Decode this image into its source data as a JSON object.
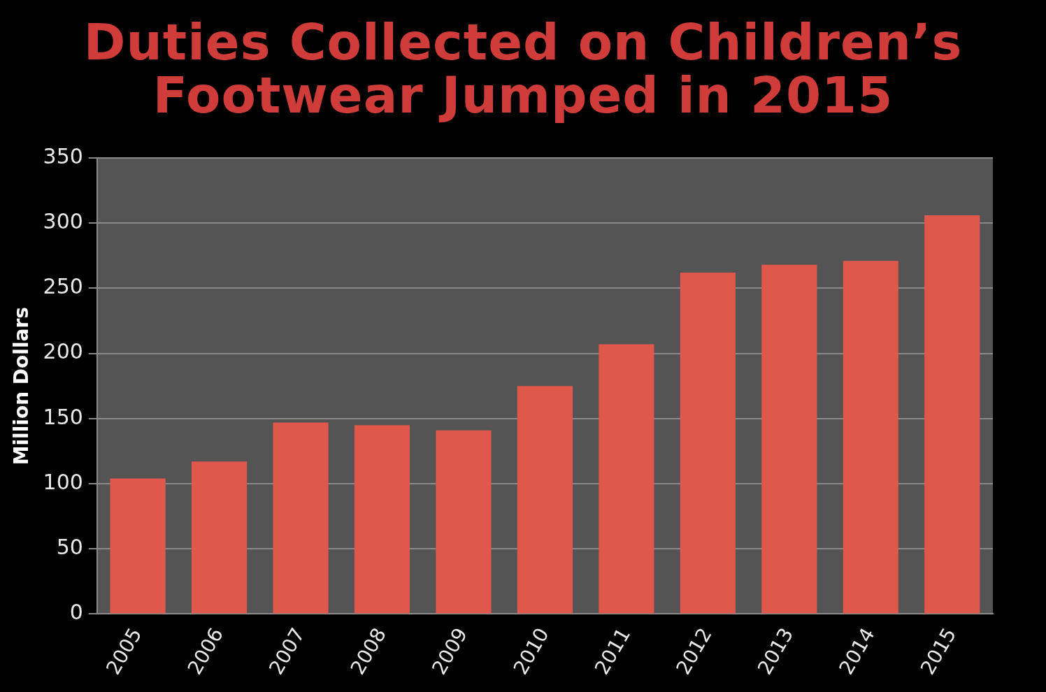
{
  "chart_data": {
    "type": "bar",
    "title": "Duties Collected on Children’s Footwear Jumped in 2015",
    "ylabel": "Million Dollars",
    "categories": [
      "2005",
      "2006",
      "2007",
      "2008",
      "2009",
      "2010",
      "2011",
      "2012",
      "2013",
      "2014",
      "2015"
    ],
    "values": [
      104,
      117,
      147,
      145,
      141,
      175,
      207,
      262,
      268,
      271,
      306
    ],
    "color": "#e0574c",
    "ylim": [
      0,
      350
    ],
    "yticks": [
      0,
      50,
      100,
      150,
      200,
      250,
      300,
      350
    ],
    "grid": "y",
    "legend": false
  }
}
